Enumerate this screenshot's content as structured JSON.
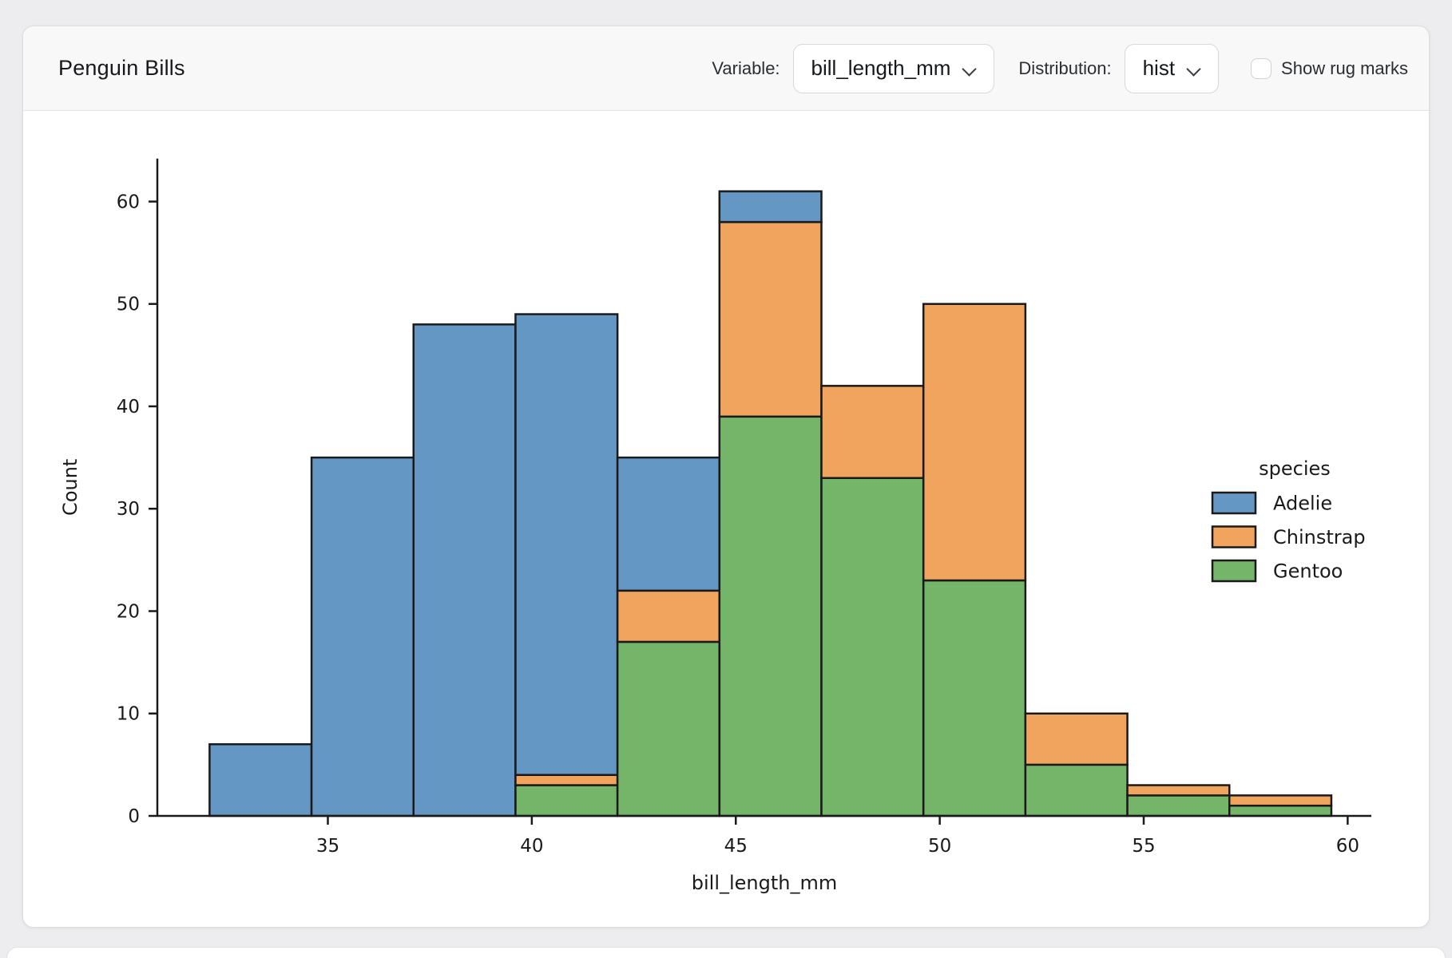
{
  "header": {
    "title": "Penguin Bills",
    "variable_label": "Variable:",
    "variable_value": "bill_length_mm",
    "distribution_label": "Distribution:",
    "distribution_value": "hist",
    "rug_label": "Show rug marks",
    "rug_checked": false
  },
  "chart_data": {
    "type": "bar",
    "subtype": "stacked_histogram",
    "title": "",
    "xlabel": "bill_length_mm",
    "ylabel": "Count",
    "bin_edges": [
      32.1,
      34.6,
      37.1,
      39.6,
      42.1,
      44.6,
      47.1,
      49.6,
      52.1,
      54.6,
      57.1,
      59.6
    ],
    "series": [
      {
        "name": "Adelie",
        "color": "#6497c3",
        "values": [
          7,
          35,
          48,
          45,
          13,
          3,
          0,
          0,
          0,
          0,
          0
        ]
      },
      {
        "name": "Chinstrap",
        "color": "#f0a45e",
        "values": [
          0,
          0,
          0,
          1,
          5,
          19,
          9,
          27,
          5,
          1,
          1
        ]
      },
      {
        "name": "Gentoo",
        "color": "#74b56a",
        "values": [
          0,
          0,
          0,
          3,
          17,
          39,
          33,
          23,
          5,
          2,
          1
        ]
      }
    ],
    "stack_order_bottom_to_top": [
      "Gentoo",
      "Chinstrap",
      "Adelie"
    ],
    "bar_totals": [
      7,
      35,
      48,
      49,
      35,
      61,
      42,
      50,
      10,
      3,
      2
    ],
    "x_ticks": [
      35,
      40,
      45,
      50,
      55,
      60
    ],
    "y_ticks": [
      0,
      10,
      20,
      30,
      40,
      50,
      60
    ],
    "xlim": [
      30.82,
      60.58
    ],
    "ylim": [
      0,
      64.2
    ],
    "grid": false,
    "bar_edge_color": "#1a1a1a",
    "legend": {
      "title": "species",
      "entries": [
        "Adelie",
        "Chinstrap",
        "Gentoo"
      ],
      "position": "right"
    }
  }
}
